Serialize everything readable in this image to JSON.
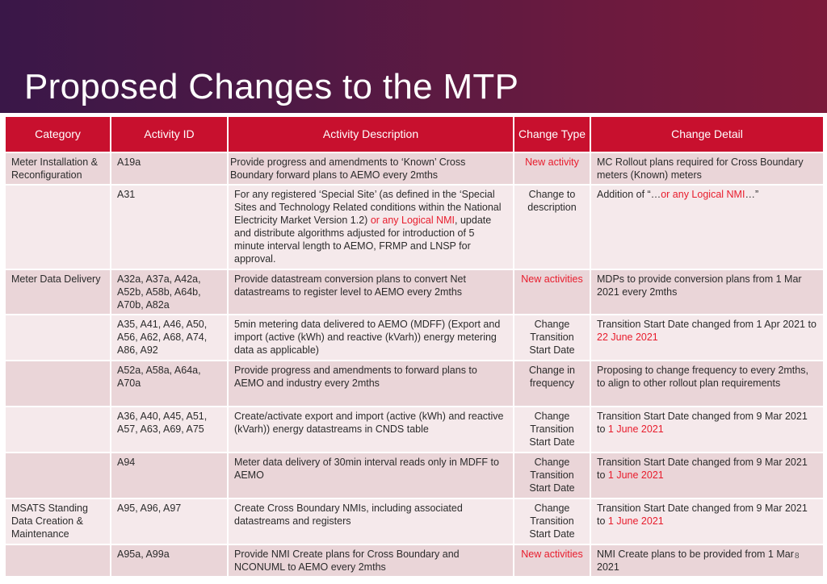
{
  "title": "Proposed Changes to the MTP",
  "table": {
    "headers": {
      "category": "Category",
      "activity_id": "Activity ID",
      "activity_description": "Activity Description",
      "change_type": "Change Type",
      "change_detail": "Change Detail"
    },
    "rows": [
      {
        "category": "Meter Installation & Reconfiguration",
        "activity_id": "A19a",
        "description": "Provide progress and amendments to ‘Known’ Cross Boundary forward plans to AEMO every 2mths",
        "change_type": "New activity",
        "detail": "MC Rollout plans required for Cross Boundary meters (Known) meters"
      },
      {
        "category": "",
        "activity_id": "A31",
        "description_a": "For any registered ‘Special Site’ (as defined in the ‘Special Sites and Technology Related conditions within the National Electricity Market Version 1.2)",
        "description_red": " or any Logical NMI",
        "description_b": ", update and distribute algorithms adjusted for introduction of 5 minute interval length to AEMO, FRMP and LNSP for approval.",
        "change_type": "Change to description",
        "detail_a": "Addition of “…",
        "detail_red": "or any Logical NMI",
        "detail_b": "…”"
      },
      {
        "category": "Meter Data Delivery",
        "activity_id": "A32a, A37a, A42a, A52b, A58b, A64b, A70b, A82a",
        "description": "Provide datastream conversion plans to convert Net datastreams to register level to AEMO every 2mths",
        "change_type": "New activities",
        "detail": "MDPs to provide conversion plans from 1 Mar 2021 every 2mths"
      },
      {
        "category": "",
        "activity_id": "A35, A41, A46, A50, A56, A62, A68, A74, A86, A92",
        "description": "5min metering data delivered to AEMO (MDFF) (Export and import (active (kWh) and reactive (kVarh)) energy metering data as applicable)",
        "change_type": "Change Transition Start Date",
        "detail_a": "Transition Start Date changed from 1 Apr 2021 to ",
        "detail_red": "22 June 2021"
      },
      {
        "category": "",
        "activity_id": "A52a, A58a, A64a, A70a",
        "description": "Provide progress and amendments to forward plans to AEMO and industry every 2mths",
        "change_type": "Change in frequency",
        "detail": "Proposing to change frequency to every 2mths, to align to other rollout plan requirements"
      },
      {
        "category": "",
        "activity_id": "A36, A40, A45, A51, A57, A63, A69, A75",
        "description": "Create/activate export and import (active (kWh) and reactive (kVarh)) energy datastreams in CNDS table",
        "change_type": "Change Transition Start Date",
        "detail_a": "Transition Start Date changed from 9 Mar 2021 to ",
        "detail_red": "1 June 2021"
      },
      {
        "category": "",
        "activity_id": "A94",
        "description": "Meter data delivery of 30min interval reads only in MDFF to AEMO",
        "change_type": "Change Transition Start Date",
        "detail_a": "Transition Start Date changed from 9 Mar 2021 to ",
        "detail_red": "1 June 2021"
      },
      {
        "category": "MSATS Standing Data Creation & Maintenance",
        "activity_id": "A95, A96, A97",
        "description": "Create Cross Boundary NMIs, including associated datastreams and registers",
        "change_type": "Change Transition Start Date",
        "detail_a": "Transition Start Date changed from 9 Mar 2021 to ",
        "detail_red": "1 June 2021"
      },
      {
        "category": "",
        "activity_id": "A95a, A99a",
        "description": "Provide NMI Create plans for Cross Boundary and NCONUML to AEMO every 2mths",
        "change_type": "New activities",
        "detail": "NMI Create plans to be provided from 1 Mar 2021"
      }
    ]
  },
  "slide_number": "8",
  "colors": {
    "header_red": "#c8102e",
    "accent_red": "#e81c2c",
    "row_dark": "#ead5d8",
    "row_light": "#f5e9eb"
  }
}
